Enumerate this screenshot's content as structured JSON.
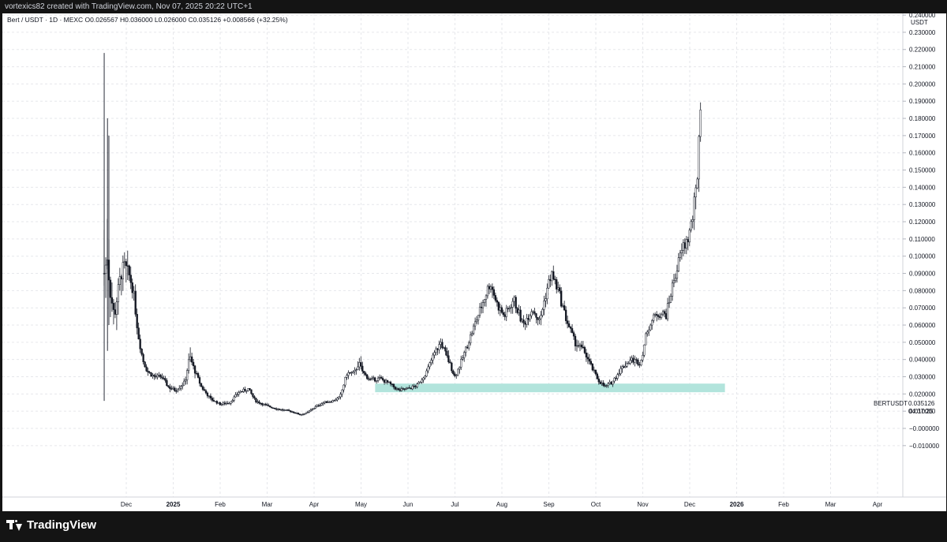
{
  "header": {
    "credit": "vortexics82 created with TradingView.com, Nov 07, 2025 20:22 UTC+1"
  },
  "legend": {
    "text": "Bert / USDT · 1D · MEXC  O0.026567  H0.036000  L0.026000  C0.035126  +0.008566 (+32.25%)"
  },
  "price_axis": {
    "unit": "USDT"
  },
  "last_price": {
    "symbol": "BERTUSDT",
    "price": "0.035126",
    "countdown": "04:37:25"
  },
  "branding": {
    "logo_text": "TradingView"
  },
  "colors": {
    "candle": "#131722",
    "zone": "#b2e4dc",
    "grid": "#e6e7eb",
    "background": "#ffffff",
    "frame": "#141414"
  },
  "chart_data": {
    "type": "candlestick",
    "symbol": "Bert / USDT",
    "interval": "1D",
    "exchange": "MEXC",
    "ohlc_last": {
      "open": 0.026567,
      "high": 0.036,
      "low": 0.026,
      "close": 0.035126,
      "change": 0.008566,
      "change_pct": 32.25
    },
    "ylim": [
      -0.015,
      0.255
    ],
    "yticks": [
      "0.250000",
      "0.240000",
      "0.230000",
      "0.220000",
      "0.210000",
      "0.200000",
      "0.190000",
      "0.180000",
      "0.170000",
      "0.160000",
      "0.150000",
      "0.140000",
      "0.130000",
      "0.120000",
      "0.110000",
      "0.100000",
      "0.090000",
      "0.080000",
      "0.070000",
      "0.060000",
      "0.050000",
      "0.040000",
      "0.030000",
      "0.020000",
      "0.010000",
      "−0.000000",
      "−0.010000"
    ],
    "xticks": [
      "Dec",
      "2025",
      "Feb",
      "Mar",
      "Apr",
      "May",
      "Jun",
      "Jul",
      "Aug",
      "Sep",
      "Oct",
      "Nov",
      "Dec",
      "2026",
      "Feb",
      "Mar",
      "Apr"
    ],
    "xticks_bold": [
      "2025",
      "2026"
    ],
    "zone": {
      "from": "May",
      "to": "Jan",
      "low": 0.021,
      "high": 0.026
    },
    "price_path": {
      "columns": [
        "month_index",
        "close",
        "high",
        "low"
      ],
      "points": [
        [
          -0.47,
          0.09,
          0.218,
          0.016
        ],
        [
          -0.4,
          0.1,
          0.18,
          0.045
        ],
        [
          -0.35,
          0.08,
          0.11,
          0.045
        ],
        [
          -0.25,
          0.065,
          0.085,
          0.045
        ],
        [
          -0.15,
          0.085,
          0.105,
          0.05
        ],
        [
          -0.05,
          0.095,
          0.125,
          0.06
        ],
        [
          0.05,
          0.09,
          0.11,
          0.065
        ],
        [
          0.15,
          0.08,
          0.09,
          0.06
        ],
        [
          0.25,
          0.055,
          0.065,
          0.045
        ],
        [
          0.35,
          0.04,
          0.05,
          0.035
        ],
        [
          0.45,
          0.033,
          0.04,
          0.028
        ],
        [
          0.6,
          0.03,
          0.035,
          0.025
        ],
        [
          0.75,
          0.03,
          0.036,
          0.026
        ],
        [
          0.9,
          0.024,
          0.03,
          0.018
        ],
        [
          1.05,
          0.022,
          0.028,
          0.017
        ],
        [
          1.25,
          0.027,
          0.032,
          0.022
        ],
        [
          1.35,
          0.042,
          0.058,
          0.033
        ],
        [
          1.45,
          0.034,
          0.04,
          0.026
        ],
        [
          1.6,
          0.024,
          0.03,
          0.02
        ],
        [
          1.8,
          0.017,
          0.022,
          0.013
        ],
        [
          2.0,
          0.014,
          0.018,
          0.011
        ],
        [
          2.2,
          0.015,
          0.019,
          0.011
        ],
        [
          2.4,
          0.021,
          0.025,
          0.017
        ],
        [
          2.6,
          0.023,
          0.028,
          0.018
        ],
        [
          2.75,
          0.016,
          0.02,
          0.013
        ],
        [
          3.0,
          0.013,
          0.016,
          0.011
        ],
        [
          3.25,
          0.011,
          0.014,
          0.009
        ],
        [
          3.5,
          0.01,
          0.012,
          0.008
        ],
        [
          3.7,
          0.008,
          0.01,
          0.006
        ],
        [
          3.85,
          0.009,
          0.011,
          0.007
        ],
        [
          4.0,
          0.012,
          0.015,
          0.01
        ],
        [
          4.2,
          0.015,
          0.018,
          0.012
        ],
        [
          4.4,
          0.016,
          0.018,
          0.014
        ],
        [
          4.55,
          0.018,
          0.022,
          0.014
        ],
        [
          4.7,
          0.032,
          0.036,
          0.024
        ],
        [
          4.85,
          0.032,
          0.036,
          0.026
        ],
        [
          4.95,
          0.038,
          0.051,
          0.03
        ],
        [
          5.05,
          0.032,
          0.038,
          0.027
        ],
        [
          5.2,
          0.028,
          0.033,
          0.025
        ],
        [
          5.4,
          0.029,
          0.033,
          0.025
        ],
        [
          5.6,
          0.026,
          0.029,
          0.022
        ],
        [
          5.8,
          0.022,
          0.026,
          0.02
        ],
        [
          6.0,
          0.023,
          0.027,
          0.02
        ],
        [
          6.2,
          0.025,
          0.028,
          0.022
        ],
        [
          6.4,
          0.033,
          0.036,
          0.028
        ],
        [
          6.55,
          0.043,
          0.047,
          0.035
        ],
        [
          6.7,
          0.05,
          0.057,
          0.043
        ],
        [
          6.85,
          0.04,
          0.05,
          0.032
        ],
        [
          7.0,
          0.03,
          0.035,
          0.026
        ],
        [
          7.15,
          0.04,
          0.045,
          0.033
        ],
        [
          7.35,
          0.055,
          0.062,
          0.045
        ],
        [
          7.55,
          0.07,
          0.078,
          0.06
        ],
        [
          7.75,
          0.085,
          0.089,
          0.073
        ],
        [
          7.9,
          0.072,
          0.08,
          0.065
        ],
        [
          8.05,
          0.065,
          0.072,
          0.058
        ],
        [
          8.25,
          0.075,
          0.08,
          0.064
        ],
        [
          8.45,
          0.06,
          0.068,
          0.052
        ],
        [
          8.65,
          0.07,
          0.076,
          0.06
        ],
        [
          8.8,
          0.062,
          0.07,
          0.055
        ],
        [
          8.95,
          0.08,
          0.088,
          0.07
        ],
        [
          9.05,
          0.09,
          0.097,
          0.08
        ],
        [
          9.2,
          0.08,
          0.088,
          0.07
        ],
        [
          9.35,
          0.065,
          0.072,
          0.055
        ],
        [
          9.55,
          0.05,
          0.06,
          0.042
        ],
        [
          9.75,
          0.045,
          0.055,
          0.036
        ],
        [
          9.9,
          0.036,
          0.042,
          0.03
        ],
        [
          10.05,
          0.028,
          0.034,
          0.024
        ],
        [
          10.2,
          0.024,
          0.028,
          0.021
        ],
        [
          10.35,
          0.027,
          0.03,
          0.023
        ],
        [
          10.55,
          0.035,
          0.045,
          0.028
        ],
        [
          10.75,
          0.04,
          0.046,
          0.033
        ],
        [
          10.95,
          0.038,
          0.043,
          0.033
        ],
        [
          11.1,
          0.058,
          0.062,
          0.045
        ],
        [
          11.3,
          0.067,
          0.072,
          0.06
        ],
        [
          11.5,
          0.066,
          0.075,
          0.062
        ],
        [
          11.65,
          0.085,
          0.095,
          0.076
        ],
        [
          11.85,
          0.105,
          0.112,
          0.097
        ],
        [
          11.95,
          0.109,
          0.115,
          0.1
        ],
        [
          12.05,
          0.12,
          0.121,
          0.108
        ],
        [
          12.15,
          0.14,
          0.142,
          0.12
        ],
        [
          12.25,
          0.205,
          0.207,
          0.142
        ]
      ]
    }
  }
}
